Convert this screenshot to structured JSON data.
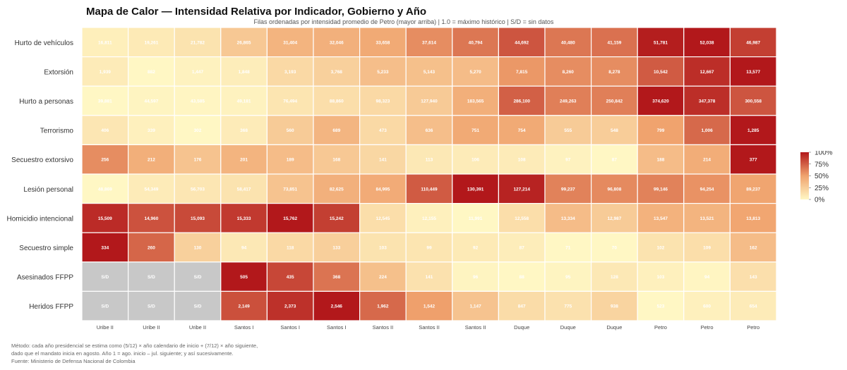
{
  "header": {
    "title": "Mapa de Calor — Intensidad Relativa por Indicador, Gobierno y Año",
    "subtitle": "Filas ordenadas por intensidad promedio de Petro (mayor arriba)  |  1.0 = máximo histórico  |  S/D = sin datos"
  },
  "footer": {
    "method_line1": "Método: cada año presidencial se estima como (5/12) × año calendario de inicio + (7/12) × año siguiente,",
    "method_line2": "dado que el mandato inicia en agosto. Año 1 = ago. inicio – jul. siguiente; y así sucesivamente.",
    "source": "Fuente: Ministerio de Defensa Nacional de Colombia"
  },
  "colors": {
    "low": "#fff7c4",
    "mid": "#f0a36e",
    "high": "#b2181b",
    "missing": "#c8c8c8"
  },
  "chart_data": {
    "type": "heatmap",
    "title": "Mapa de Calor — Intensidad Relativa por Indicador, Gobierno y Año",
    "columns": [
      [
        "Uribe II",
        "Año 1"
      ],
      [
        "Uribe II",
        "Año 2"
      ],
      [
        "Uribe II",
        "Año 3"
      ],
      [
        "Santos I",
        "Año 1"
      ],
      [
        "Santos I",
        "Año 2"
      ],
      [
        "Santos I",
        "Año 3"
      ],
      [
        "Santos II",
        "Año 1"
      ],
      [
        "Santos II",
        "Año 2"
      ],
      [
        "Santos II",
        "Año 3"
      ],
      [
        "Duque",
        "Año 1"
      ],
      [
        "Duque",
        "Año 2"
      ],
      [
        "Duque",
        "Año 3"
      ],
      [
        "Petro",
        "Año 1"
      ],
      [
        "Petro",
        "Año 2"
      ],
      [
        "Petro",
        "Año 3"
      ]
    ],
    "rows": [
      {
        "name": "Hurto de vehículos",
        "labels": [
          "16,811",
          "19,261",
          "21,782",
          "26,865",
          "31,404",
          "32,046",
          "33,658",
          "37,614",
          "40,794",
          "44,692",
          "40,480",
          "41,159",
          "51,781",
          "52,038",
          "46,987"
        ],
        "intensity": [
          0.05,
          0.08,
          0.12,
          0.28,
          0.4,
          0.42,
          0.46,
          0.58,
          0.66,
          0.78,
          0.66,
          0.68,
          0.98,
          1.0,
          0.86
        ]
      },
      {
        "name": "Extorsión",
        "labels": [
          "1,939",
          "882",
          "1,447",
          "1,848",
          "3,193",
          "3,768",
          "5,233",
          "5,143",
          "5,270",
          "7,815",
          "8,260",
          "8,278",
          "10,542",
          "12,667",
          "13,577"
        ],
        "intensity": [
          0.07,
          0.0,
          0.03,
          0.06,
          0.18,
          0.23,
          0.34,
          0.33,
          0.35,
          0.54,
          0.58,
          0.58,
          0.76,
          0.92,
          1.0
        ]
      },
      {
        "name": "Hurto a personas",
        "labels": [
          "39,881",
          "44,597",
          "43,585",
          "49,181",
          "76,494",
          "88,860",
          "98,323",
          "127,940",
          "183,565",
          "286,100",
          "249,263",
          "250,842",
          "374,620",
          "347,378",
          "300,558"
        ],
        "intensity": [
          0.0,
          0.02,
          0.01,
          0.03,
          0.11,
          0.15,
          0.18,
          0.27,
          0.43,
          0.74,
          0.63,
          0.63,
          1.0,
          0.92,
          0.78
        ]
      },
      {
        "name": "Terrorismo",
        "labels": [
          "406",
          "339",
          "302",
          "368",
          "560",
          "689",
          "473",
          "636",
          "751",
          "754",
          "555",
          "548",
          "799",
          "1,006",
          "1,285"
        ],
        "intensity": [
          0.1,
          0.04,
          0.0,
          0.07,
          0.26,
          0.39,
          0.18,
          0.34,
          0.46,
          0.46,
          0.26,
          0.25,
          0.5,
          0.71,
          1.0
        ]
      },
      {
        "name": "Secuestro extorsivo",
        "labels": [
          "256",
          "212",
          "176",
          "201",
          "189",
          "168",
          "141",
          "113",
          "106",
          "108",
          "97",
          "87",
          "188",
          "214",
          "377"
        ],
        "intensity": [
          0.58,
          0.43,
          0.31,
          0.4,
          0.35,
          0.28,
          0.19,
          0.09,
          0.07,
          0.07,
          0.03,
          0.0,
          0.35,
          0.44,
          1.0
        ]
      },
      {
        "name": "Lesión personal",
        "labels": [
          "48,869",
          "54,349",
          "56,703",
          "58,417",
          "73,851",
          "82,625",
          "84,995",
          "110,449",
          "130,391",
          "127,214",
          "99,237",
          "96,808",
          "99,146",
          "94,254",
          "89,237"
        ],
        "intensity": [
          0.0,
          0.07,
          0.1,
          0.12,
          0.31,
          0.42,
          0.45,
          0.76,
          1.0,
          0.96,
          0.62,
          0.59,
          0.62,
          0.56,
          0.49
        ]
      },
      {
        "name": "Homicidio intencional",
        "labels": [
          "15,509",
          "14,960",
          "15,093",
          "15,333",
          "15,762",
          "15,242",
          "12,545",
          "12,155",
          "11,991",
          "12,558",
          "13,334",
          "12,987",
          "13,547",
          "13,521",
          "13,813"
        ],
        "intensity": [
          0.93,
          0.79,
          0.82,
          0.88,
          1.0,
          0.86,
          0.15,
          0.04,
          0.0,
          0.15,
          0.35,
          0.26,
          0.41,
          0.4,
          0.48
        ]
      },
      {
        "name": "Secuestro simple",
        "labels": [
          "334",
          "260",
          "130",
          "94",
          "118",
          "133",
          "103",
          "99",
          "92",
          "87",
          "71",
          "70",
          "102",
          "109",
          "162"
        ],
        "intensity": [
          1.0,
          0.72,
          0.23,
          0.09,
          0.18,
          0.24,
          0.12,
          0.11,
          0.08,
          0.06,
          0.0,
          0.0,
          0.12,
          0.15,
          0.35
        ]
      },
      {
        "name": "Asesinados FFPP",
        "labels": [
          "S/D",
          "S/D",
          "S/D",
          "505",
          "435",
          "368",
          "224",
          "141",
          "96",
          "88",
          "95",
          "128",
          "103",
          "94",
          "143"
        ],
        "intensity": [
          null,
          null,
          null,
          1.0,
          0.83,
          0.67,
          0.33,
          0.13,
          0.02,
          0.0,
          0.02,
          0.09,
          0.04,
          0.01,
          0.14
        ]
      },
      {
        "name": "Heridos FFPP",
        "labels": [
          "S/D",
          "S/D",
          "S/D",
          "2,149",
          "2,373",
          "2,546",
          "1,962",
          "1,542",
          "1,147",
          "847",
          "775",
          "938",
          "523",
          "600",
          "654"
        ],
        "intensity": [
          null,
          null,
          null,
          0.8,
          0.91,
          1.0,
          0.71,
          0.51,
          0.31,
          0.16,
          0.13,
          0.21,
          0.0,
          0.04,
          0.07
        ]
      }
    ],
    "legend": {
      "ticks": [
        "100%",
        "75%",
        "50%",
        "25%",
        "0%"
      ],
      "range": [
        0,
        1
      ],
      "placement": "right"
    },
    "missing_label": "S/D"
  }
}
